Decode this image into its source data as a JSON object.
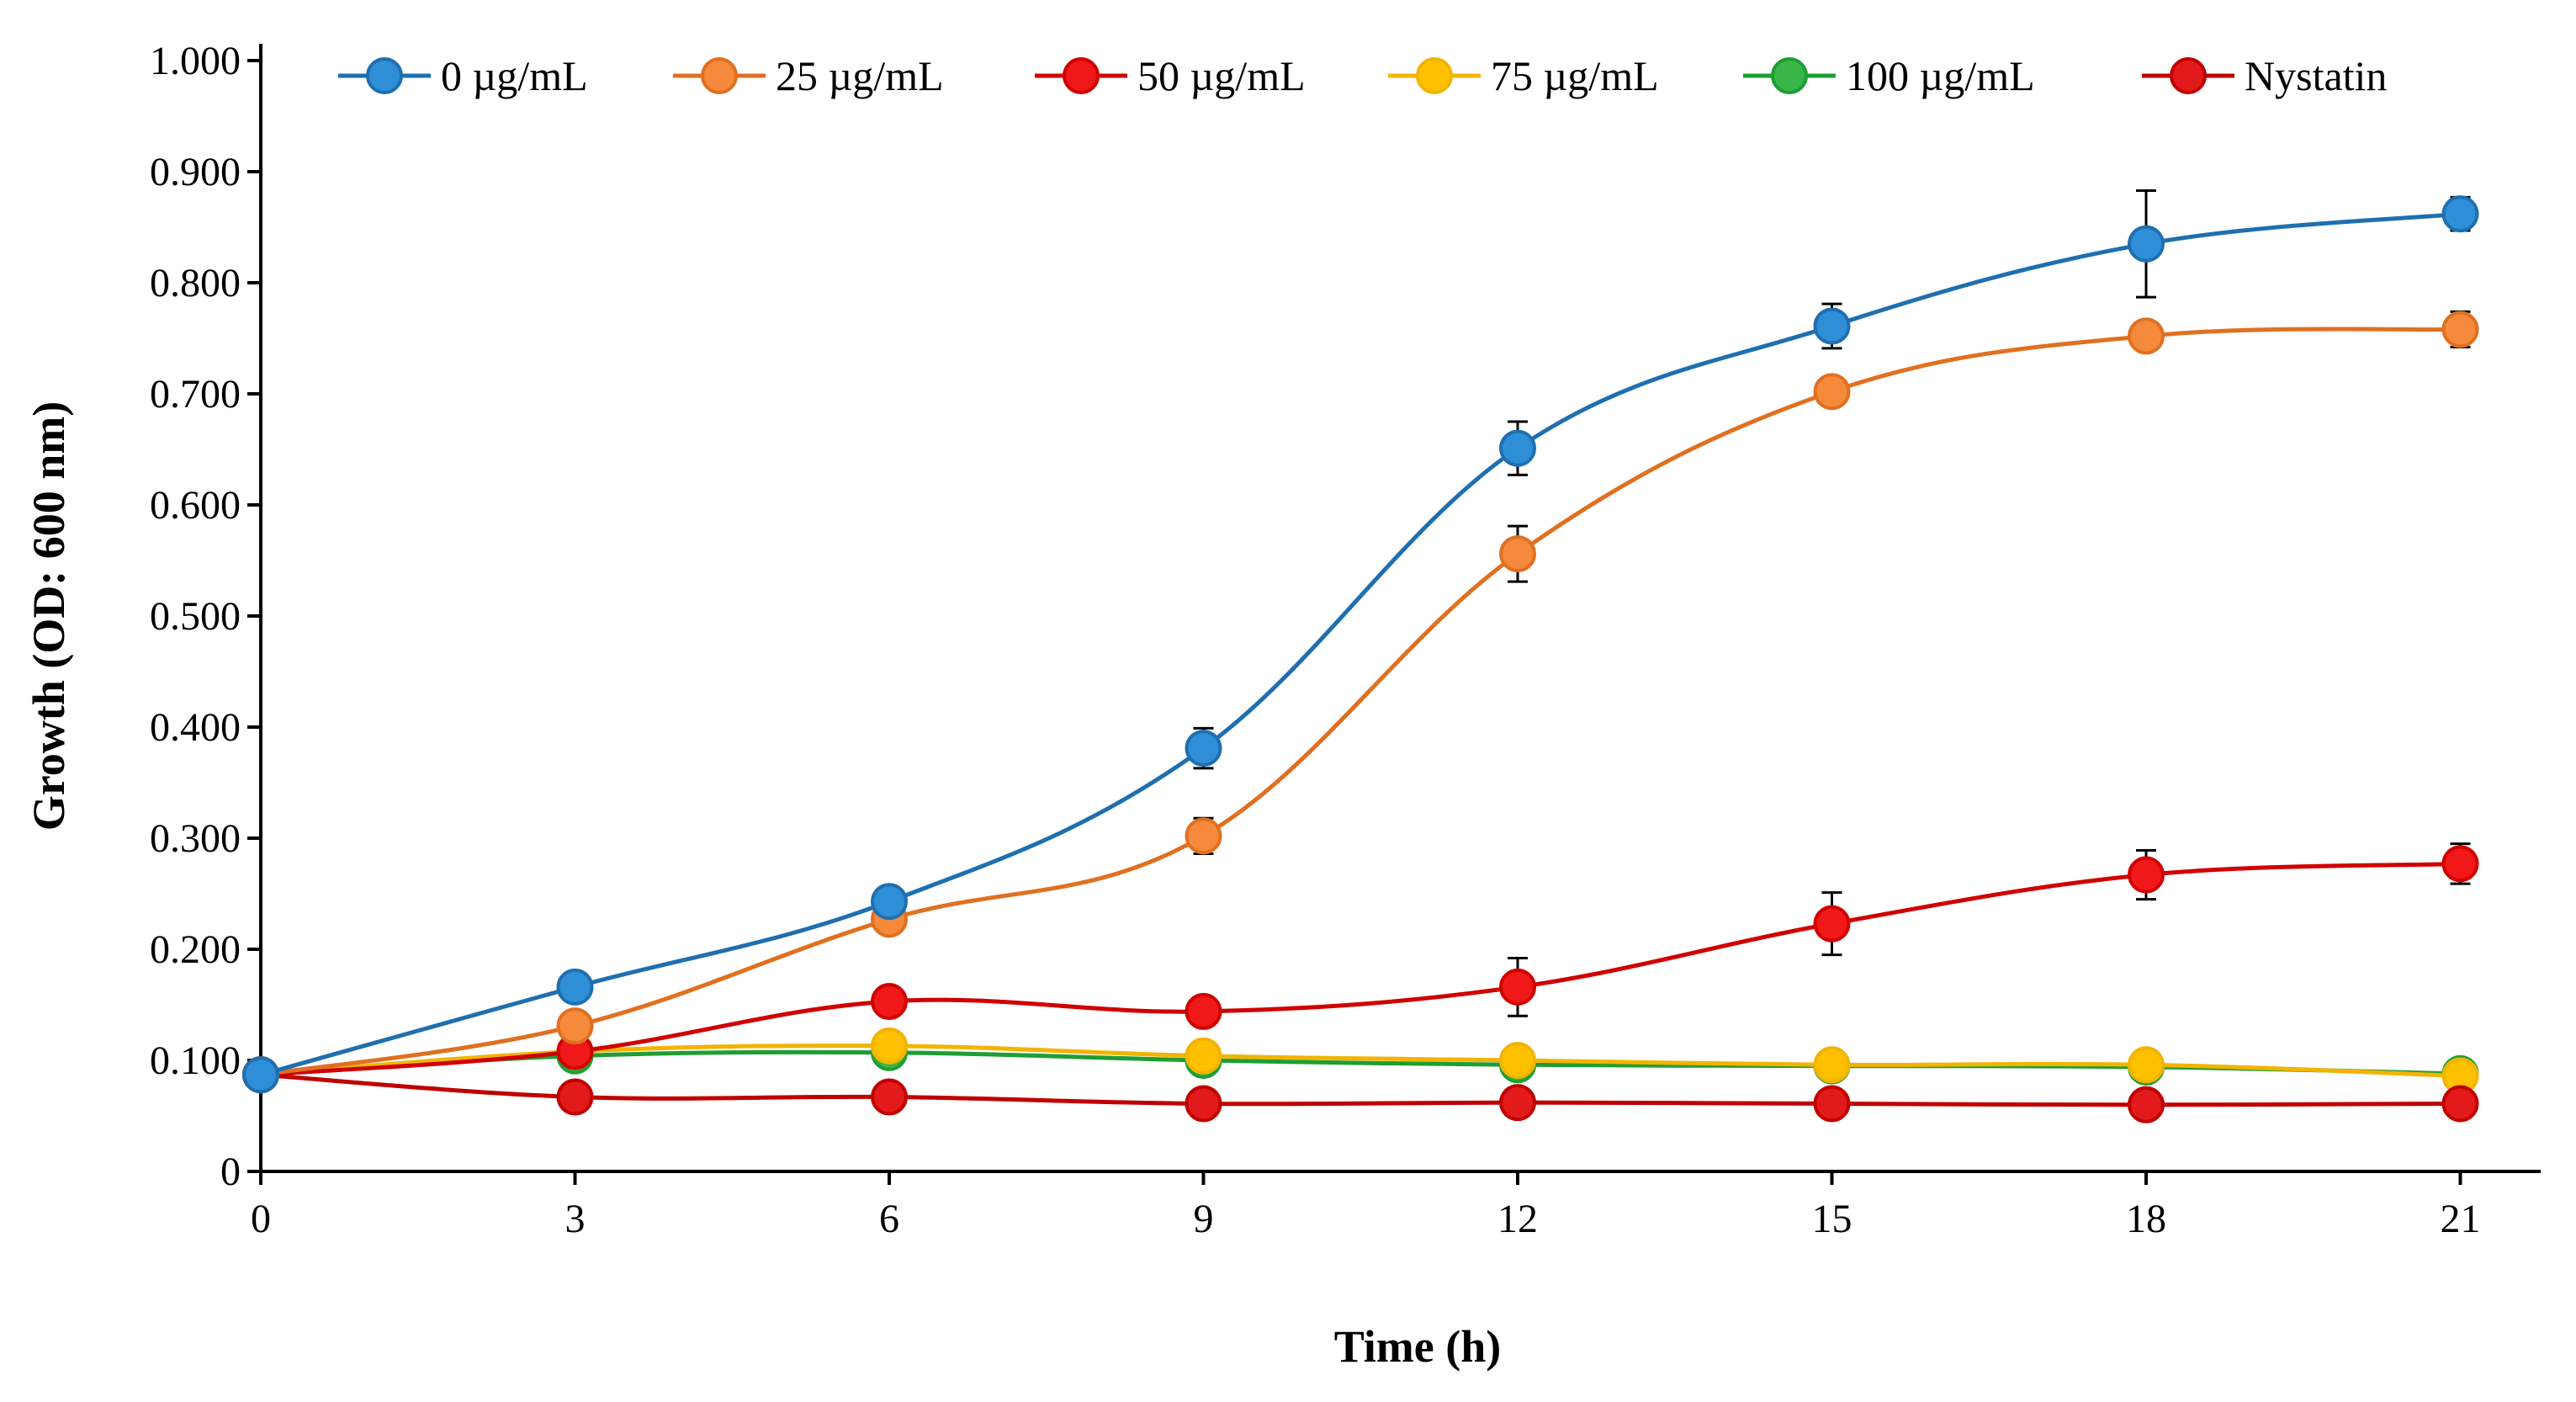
{
  "chart_data": {
    "type": "line",
    "title": "",
    "xlabel": "Time (h)",
    "ylabel": "Growth (OD: 600 nm)",
    "x": [
      0,
      3,
      6,
      9,
      12,
      15,
      18,
      21
    ],
    "xlim": [
      0,
      22
    ],
    "ylim": [
      0,
      1.0
    ],
    "x_ticks": [
      "0",
      "3",
      "6",
      "9",
      "12",
      "15",
      "18",
      "21"
    ],
    "y_ticks": [
      "0",
      "0.100",
      "0.200",
      "0.300",
      "0.400",
      "0.500",
      "0.600",
      "0.700",
      "0.800",
      "0.900",
      "1.000"
    ],
    "legend_position": "top",
    "grid": false,
    "series": [
      {
        "name": "0 µg/mL",
        "color": "#2E8FD6",
        "stroke": "#1F6FB0",
        "values": [
          0.087,
          0.166,
          0.243,
          0.381,
          0.651,
          0.761,
          0.835,
          0.862
        ],
        "errors": [
          0.004,
          0.01,
          0.008,
          0.018,
          0.024,
          0.02,
          0.048,
          0.015
        ]
      },
      {
        "name": "25 µg/mL",
        "color": "#F58A3C",
        "stroke": "#E07020",
        "values": [
          0.087,
          0.131,
          0.227,
          0.302,
          0.556,
          0.702,
          0.752,
          0.758
        ],
        "errors": [
          0.004,
          0.008,
          0.008,
          0.016,
          0.025,
          0.012,
          0.012,
          0.016
        ]
      },
      {
        "name": "50 µg/mL",
        "color": "#F01818",
        "stroke": "#D00000",
        "values": [
          0.087,
          0.108,
          0.153,
          0.144,
          0.166,
          0.223,
          0.267,
          0.277
        ],
        "errors": [
          0.004,
          0.006,
          0.008,
          0.008,
          0.026,
          0.028,
          0.022,
          0.018
        ]
      },
      {
        "name": "75 µg/mL",
        "color": "#FFC000",
        "stroke": "#F2B400",
        "values": [
          0.087,
          0.108,
          0.113,
          0.104,
          0.1,
          0.096,
          0.096,
          0.086
        ],
        "errors": [
          0.003,
          0.004,
          0.004,
          0.004,
          0.004,
          0.004,
          0.004,
          0.004
        ]
      },
      {
        "name": "100 µg/mL",
        "color": "#39B54A",
        "stroke": "#1E9E32",
        "values": [
          0.087,
          0.104,
          0.107,
          0.1,
          0.096,
          0.095,
          0.094,
          0.088
        ],
        "errors": [
          0.003,
          0.004,
          0.004,
          0.004,
          0.004,
          0.004,
          0.004,
          0.004
        ]
      },
      {
        "name": "Nystatin",
        "color": "#E31A1C",
        "stroke": "#C00000",
        "values": [
          0.087,
          0.067,
          0.067,
          0.061,
          0.062,
          0.061,
          0.06,
          0.061
        ],
        "errors": [
          0.003,
          0.003,
          0.003,
          0.003,
          0.003,
          0.003,
          0.003,
          0.003
        ]
      }
    ]
  }
}
